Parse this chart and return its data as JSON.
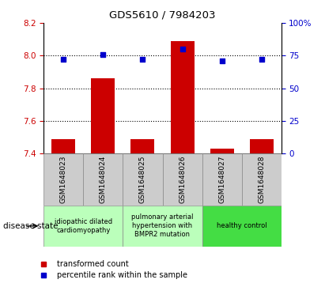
{
  "title": "GDS5610 / 7984203",
  "samples": [
    "GSM1648023",
    "GSM1648024",
    "GSM1648025",
    "GSM1648026",
    "GSM1648027",
    "GSM1648028"
  ],
  "transformed_count": [
    7.49,
    7.86,
    7.49,
    8.09,
    7.43,
    7.49
  ],
  "percentile_rank": [
    72,
    76,
    72,
    80,
    71,
    72
  ],
  "ylim_left": [
    7.4,
    8.2
  ],
  "ylim_right": [
    0,
    100
  ],
  "yticks_left": [
    7.4,
    7.6,
    7.8,
    8.0,
    8.2
  ],
  "yticks_right": [
    0,
    25,
    50,
    75,
    100
  ],
  "ytick_labels_right": [
    "0",
    "25",
    "50",
    "75",
    "100%"
  ],
  "bar_color": "#cc0000",
  "dot_color": "#0000cc",
  "disease_groups": [
    {
      "label": "idiopathic dilated\ncardiomyopathy",
      "samples": [
        0,
        1
      ],
      "color": "#bbffbb"
    },
    {
      "label": "pulmonary arterial\nhypertension with\nBMPR2 mutation",
      "samples": [
        2,
        3
      ],
      "color": "#bbffbb"
    },
    {
      "label": "healthy control",
      "samples": [
        4,
        5
      ],
      "color": "#44dd44"
    }
  ],
  "legend_items": [
    {
      "label": "transformed count",
      "color": "#cc0000"
    },
    {
      "label": "percentile rank within the sample",
      "color": "#0000cc"
    }
  ],
  "disease_state_label": "disease state",
  "left_tick_color": "#cc0000",
  "right_tick_color": "#0000cc",
  "grey_box_color": "#cccccc"
}
